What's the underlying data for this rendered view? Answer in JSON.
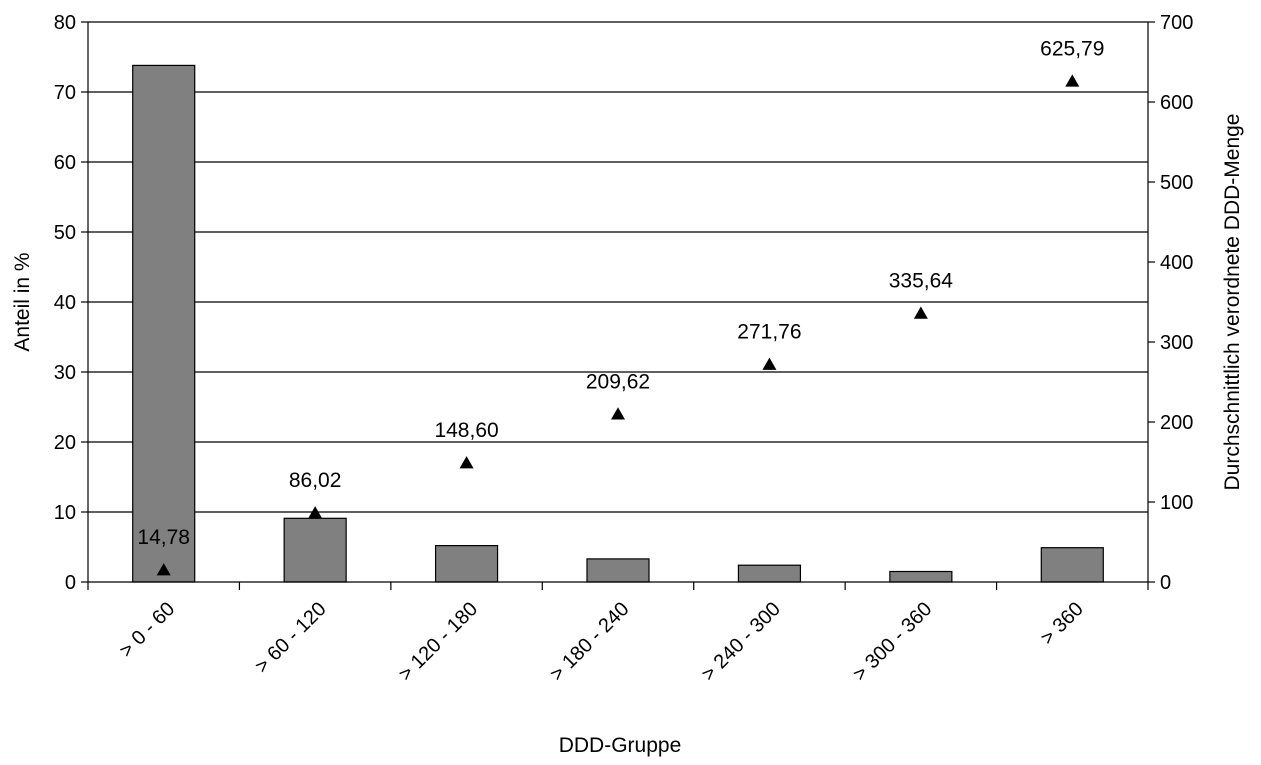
{
  "chart_data": {
    "type": "bar",
    "title": "",
    "xlabel": "DDD-Gruppe",
    "ylabel": "Anteil in %",
    "y2label": "Durchschnittlich verordnete DDD-Menge",
    "categories": [
      "> 0 - 60",
      "> 60 - 120",
      "> 120 - 180",
      "> 180 - 240",
      "> 240 - 300",
      "> 300 - 360",
      "> 360"
    ],
    "ylim": [
      0,
      80
    ],
    "y2lim": [
      0,
      700
    ],
    "yticks": [
      0,
      10,
      20,
      30,
      40,
      50,
      60,
      70,
      80
    ],
    "y2ticks": [
      0,
      100,
      200,
      300,
      400,
      500,
      600,
      700
    ],
    "grid": true,
    "series": [
      {
        "type": "bar",
        "axis": "left",
        "color": "#808080",
        "values": [
          73.8,
          9.1,
          5.2,
          3.3,
          2.4,
          1.5,
          4.9
        ]
      },
      {
        "type": "scatter",
        "axis": "right",
        "marker": "triangle",
        "color": "#000000",
        "values": [
          14.78,
          86.02,
          148.6,
          209.62,
          271.76,
          335.64,
          625.79
        ],
        "labels": [
          "14,78",
          "86,02",
          "148,60",
          "209,62",
          "271,76",
          "335,64",
          "625,79"
        ]
      }
    ]
  }
}
